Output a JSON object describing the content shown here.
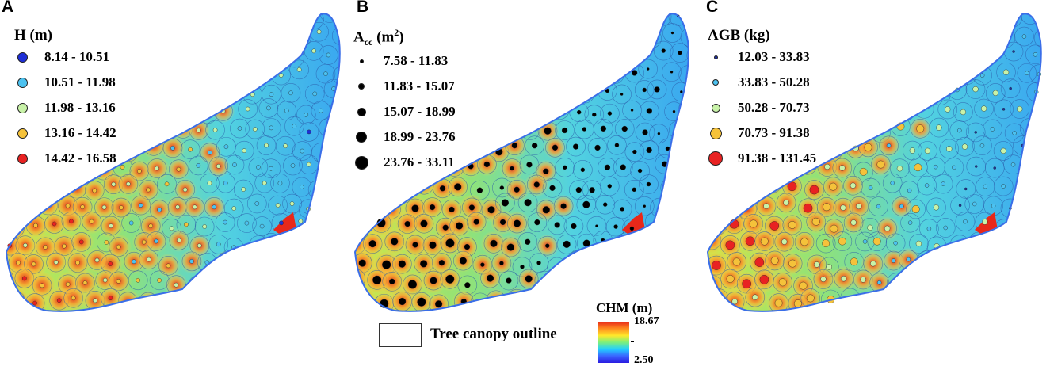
{
  "panels": [
    {
      "letter": "A",
      "legend_title": "H (m)",
      "classes": [
        {
          "range": "8.14 - 10.51",
          "color": "#1e2fd6"
        },
        {
          "range": "10.51 - 11.98",
          "color": "#4cc2f0"
        },
        {
          "range": "11.98 - 13.16",
          "color": "#c8f2a8"
        },
        {
          "range": "13.16 - 14.42",
          "color": "#f5c23a"
        },
        {
          "range": "14.42 - 16.58",
          "color": "#e82222"
        }
      ]
    },
    {
      "letter": "B",
      "legend_title_main": "A",
      "legend_title_sub": "cc",
      "legend_title_unit": " (m",
      "legend_title_sup": "2",
      "legend_title_close": ")",
      "classes": [
        {
          "range": "7.58 - 11.83",
          "size": 5
        },
        {
          "range": "11.83 - 15.07",
          "size": 8
        },
        {
          "range": "15.07 - 18.99",
          "size": 11
        },
        {
          "range": "18.99 - 23.76",
          "size": 14
        },
        {
          "range": "23.76 - 33.11",
          "size": 17
        }
      ],
      "symbol_color": "#000000"
    },
    {
      "letter": "C",
      "legend_title": "AGB (kg)",
      "classes": [
        {
          "range": "12.03 - 33.83",
          "color": "#1e2fa0",
          "size": 5
        },
        {
          "range": "33.83 - 50.28",
          "color": "#4cc2f0",
          "size": 8
        },
        {
          "range": "50.28 - 70.73",
          "color": "#c8f2a8",
          "size": 11
        },
        {
          "range": "70.73 - 91.38",
          "color": "#f5c23a",
          "size": 15
        },
        {
          "range": "91.38 - 131.45",
          "color": "#e82222",
          "size": 18
        }
      ]
    }
  ],
  "outline_legend": {
    "label": "Tree canopy outline"
  },
  "chm_legend": {
    "title": "CHM (m)",
    "max": "18.67",
    "min": "2.50",
    "colors": [
      "#e8281a",
      "#ff8a1e",
      "#ffe82a",
      "#7ef07a",
      "#22d0ff",
      "#3a64ff",
      "#2a1ce0"
    ]
  }
}
